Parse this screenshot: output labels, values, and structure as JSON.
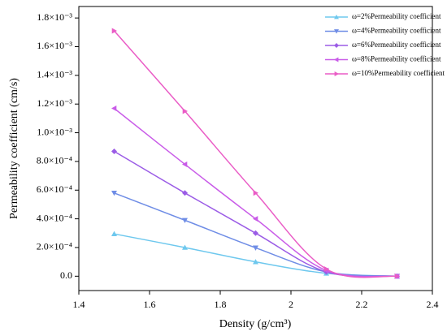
{
  "chart_data": {
    "type": "line",
    "x_label": "Density (g/cm³)",
    "y_label": "Permeability coefficient (cm/s)",
    "xlim": [
      1.4,
      2.4
    ],
    "xticks": [
      1.4,
      1.6,
      1.8,
      2.0,
      2.2,
      2.4
    ],
    "ylim": [
      -0.0001,
      0.00188
    ],
    "yticks": [
      {
        "value": 0,
        "label": "0.0"
      },
      {
        "value": 0.0002,
        "label": "2.0×10⁻⁴"
      },
      {
        "value": 0.0004,
        "label": "4.0×10⁻⁴"
      },
      {
        "value": 0.0006,
        "label": "6.0×10⁻⁴"
      },
      {
        "value": 0.0008,
        "label": "8.0×10⁻⁴"
      },
      {
        "value": 0.001,
        "label": "1.0×10⁻³"
      },
      {
        "value": 0.0012,
        "label": "1.2×10⁻³"
      },
      {
        "value": 0.0014,
        "label": "1.4×10⁻³"
      },
      {
        "value": 0.0016,
        "label": "1.6×10⁻³"
      },
      {
        "value": 0.0018,
        "label": "1.8×10⁻³"
      }
    ],
    "legend": "upper right",
    "x": [
      1.5,
      1.7,
      1.9,
      2.1,
      2.3
    ],
    "series": [
      {
        "name": "ω=2%Permeability coefficient",
        "color": "#6ec8ee",
        "marker": "triangle-up",
        "values": [
          0.000295,
          0.0002,
          0.0001,
          2e-05,
          0
        ]
      },
      {
        "name": "ω=4%Permeability coefficient",
        "color": "#6f8de6",
        "marker": "triangle-down",
        "values": [
          0.00058,
          0.00039,
          0.000198,
          3e-05,
          0
        ]
      },
      {
        "name": "ω=6%Permeability coefficient",
        "color": "#9b5ce6",
        "marker": "diamond",
        "values": [
          0.00087,
          0.00058,
          0.0003,
          3e-05,
          0
        ]
      },
      {
        "name": "ω=8%Permeability coefficient",
        "color": "#c95ce8",
        "marker": "triangle-left",
        "values": [
          0.00117,
          0.00078,
          0.0004,
          4e-05,
          0
        ]
      },
      {
        "name": "ω=10%Permeability coefficient",
        "color": "#ea5cc6",
        "marker": "triangle-right",
        "values": [
          0.00171,
          0.00115,
          0.00058,
          5e-05,
          0
        ]
      }
    ]
  }
}
